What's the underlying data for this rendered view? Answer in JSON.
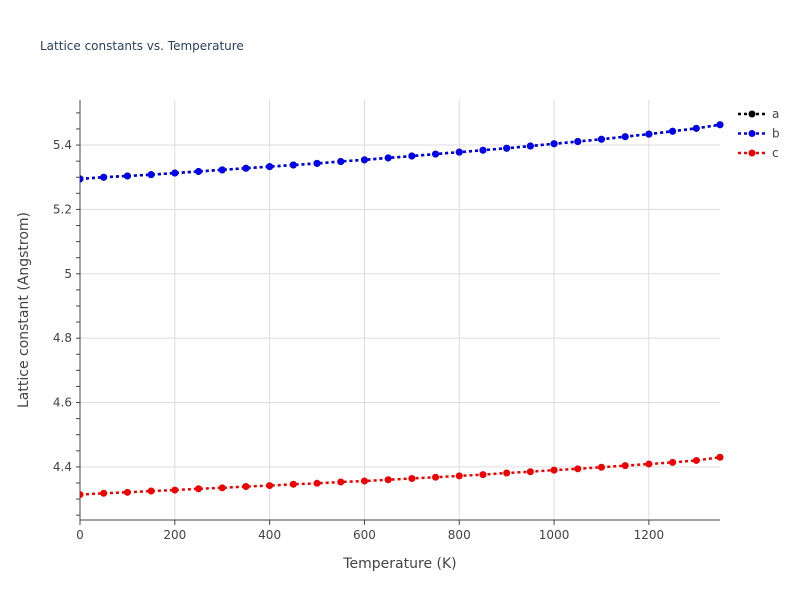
{
  "chart_data": {
    "type": "line",
    "title": "Lattice constants vs. Temperature",
    "xlabel": "Temperature (K)",
    "ylabel": "Lattice constant (Angstrom)",
    "xlim": [
      0,
      1350
    ],
    "ylim": [
      4.235,
      5.54
    ],
    "xticks": [
      0,
      200,
      400,
      600,
      800,
      1000,
      1200
    ],
    "xtick_labels": [
      "0",
      "200",
      "400",
      "600",
      "800",
      "1000",
      "1200"
    ],
    "yticks": [
      4.4,
      4.6,
      4.8,
      5.0,
      5.2,
      5.4
    ],
    "ytick_labels": [
      "4.4",
      "4.6",
      "4.8",
      "5",
      "5.2",
      "5.4"
    ],
    "grid": true,
    "legend_position": "top-right",
    "x": [
      0,
      50,
      100,
      150,
      200,
      250,
      300,
      350,
      400,
      450,
      500,
      550,
      600,
      650,
      700,
      750,
      800,
      850,
      900,
      950,
      1000,
      1050,
      1100,
      1150,
      1200,
      1250,
      1300,
      1350
    ],
    "series": [
      {
        "name": "a",
        "color": "#000000",
        "values": [
          5.295,
          5.3,
          5.304,
          5.308,
          5.313,
          5.318,
          5.323,
          5.328,
          5.333,
          5.338,
          5.343,
          5.349,
          5.354,
          5.36,
          5.366,
          5.372,
          5.378,
          5.384,
          5.39,
          5.397,
          5.404,
          5.411,
          5.418,
          5.426,
          5.434,
          5.443,
          5.452,
          5.463
        ]
      },
      {
        "name": "b",
        "color": "#0000ee",
        "values": [
          5.295,
          5.3,
          5.304,
          5.308,
          5.313,
          5.318,
          5.323,
          5.328,
          5.333,
          5.338,
          5.343,
          5.349,
          5.354,
          5.36,
          5.366,
          5.372,
          5.378,
          5.384,
          5.39,
          5.397,
          5.404,
          5.411,
          5.418,
          5.426,
          5.434,
          5.443,
          5.452,
          5.463
        ]
      },
      {
        "name": "c",
        "color": "#ee0000",
        "values": [
          4.314,
          4.318,
          4.321,
          4.325,
          4.328,
          4.332,
          4.335,
          4.339,
          4.342,
          4.346,
          4.349,
          4.353,
          4.356,
          4.36,
          4.364,
          4.368,
          4.372,
          4.376,
          4.381,
          4.385,
          4.39,
          4.394,
          4.399,
          4.404,
          4.409,
          4.414,
          4.42,
          4.43
        ]
      }
    ]
  }
}
